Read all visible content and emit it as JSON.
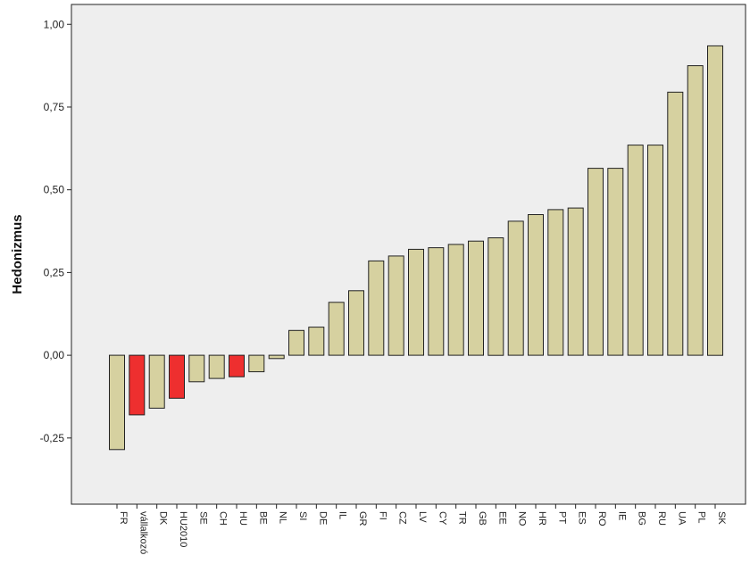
{
  "chart_data": {
    "type": "bar",
    "title": "",
    "xlabel": "",
    "ylabel": "Hedonizmus",
    "ylim": [
      -0.45,
      1.06
    ],
    "yticks": [
      -0.25,
      0.0,
      0.25,
      0.5,
      0.75,
      1.0
    ],
    "ytick_labels": [
      "-0,25",
      "0,00",
      "0,25",
      "0,50",
      "0,75",
      "1,00"
    ],
    "grid": false,
    "colors": {
      "default": "#d6d1a0",
      "highlight": "#ee2f2f",
      "plot_bg": "#eeeeee",
      "outline": "#222222"
    },
    "categories": [
      "FR",
      "vállalkozó",
      "DK",
      "HU2010",
      "SE",
      "CH",
      "HU",
      "BE",
      "NL",
      "SI",
      "DE",
      "IL",
      "GR",
      "FI",
      "CZ",
      "LV",
      "CY",
      "TR",
      "GB",
      "EE",
      "NO",
      "HR",
      "PT",
      "ES",
      "RO",
      "IE",
      "BG",
      "RU",
      "UA",
      "PL",
      "SK"
    ],
    "values": [
      -0.285,
      -0.18,
      -0.16,
      -0.13,
      -0.08,
      -0.07,
      -0.065,
      -0.05,
      -0.01,
      0.075,
      0.085,
      0.16,
      0.195,
      0.285,
      0.3,
      0.32,
      0.325,
      0.335,
      0.345,
      0.355,
      0.405,
      0.425,
      0.44,
      0.445,
      0.565,
      0.565,
      0.635,
      0.635,
      0.795,
      0.875,
      0.935
    ],
    "highlighted": [
      "vállalkozó",
      "HU2010",
      "HU"
    ]
  }
}
